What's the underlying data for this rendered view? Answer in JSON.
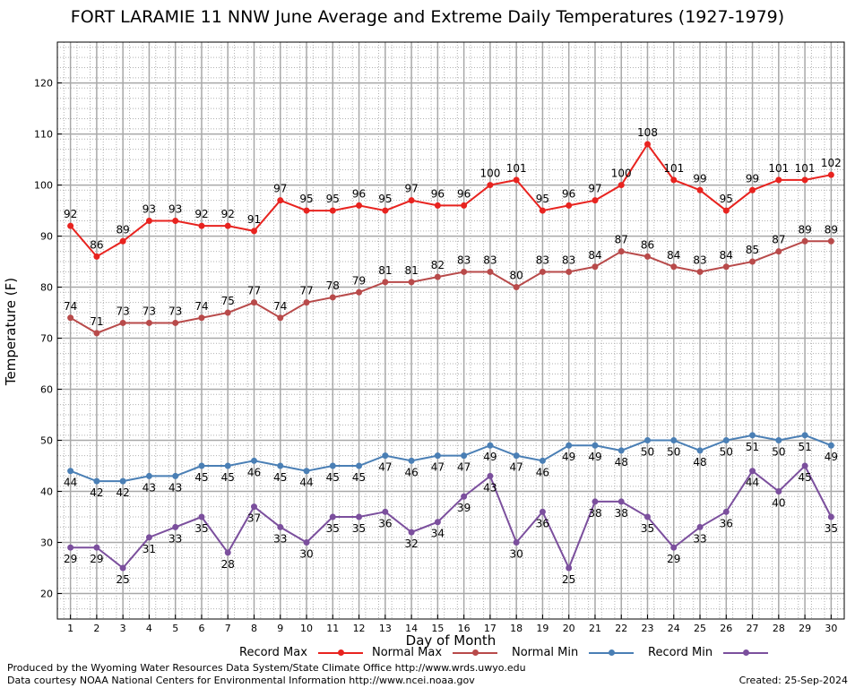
{
  "chart_data": {
    "type": "line",
    "title": "FORT LARAMIE 11 NNW June Average and Extreme Daily Temperatures (1927-1979)",
    "xlabel": "Day of Month",
    "ylabel": "Temperature (F)",
    "x": [
      1,
      2,
      3,
      4,
      5,
      6,
      7,
      8,
      9,
      10,
      11,
      12,
      13,
      14,
      15,
      16,
      17,
      18,
      19,
      20,
      21,
      22,
      23,
      24,
      25,
      26,
      27,
      28,
      29,
      30
    ],
    "xlim": [
      0.5,
      30.5
    ],
    "ylim": [
      15,
      128
    ],
    "yticks": [
      20,
      30,
      40,
      50,
      60,
      70,
      80,
      90,
      100,
      110,
      120
    ],
    "grid": true,
    "legend_position": "bottom",
    "series": [
      {
        "name": "Record Max",
        "color": "#e8231f",
        "label_pos": "above",
        "values": [
          92,
          86,
          89,
          93,
          93,
          92,
          92,
          91,
          97,
          95,
          95,
          96,
          95,
          97,
          96,
          96,
          100,
          101,
          95,
          96,
          97,
          100,
          108,
          101,
          99,
          95,
          99,
          101,
          101,
          102
        ]
      },
      {
        "name": "Normal Max",
        "color": "#b84a4a",
        "label_pos": "above",
        "values": [
          74,
          71,
          73,
          73,
          73,
          74,
          75,
          77,
          74,
          77,
          78,
          79,
          81,
          81,
          82,
          83,
          83,
          80,
          83,
          83,
          84,
          87,
          86,
          84,
          83,
          84,
          85,
          87,
          89,
          89
        ]
      },
      {
        "name": "Normal Min",
        "color": "#4a7fb5",
        "label_pos": "below",
        "values": [
          44,
          42,
          42,
          43,
          43,
          45,
          45,
          46,
          45,
          44,
          45,
          45,
          47,
          46,
          47,
          47,
          49,
          47,
          46,
          49,
          49,
          48,
          50,
          50,
          48,
          50,
          51,
          50,
          51,
          49
        ]
      },
      {
        "name": "Record Min",
        "color": "#7b4f9d",
        "label_pos": "below",
        "values": [
          29,
          29,
          25,
          31,
          33,
          35,
          28,
          37,
          33,
          30,
          35,
          35,
          36,
          32,
          34,
          39,
          43,
          30,
          36,
          25,
          38,
          38,
          35,
          29,
          33,
          36,
          44,
          40,
          45,
          35
        ]
      }
    ]
  },
  "footer": {
    "produced_by": "Produced by the Wyoming Water Resources Data System/State Climate Office http://www.wrds.uwyo.edu",
    "courtesy": "Data courtesy NOAA National Centers for Environmental Information http://www.ncei.noaa.gov",
    "created": "Created: 25-Sep-2024"
  }
}
